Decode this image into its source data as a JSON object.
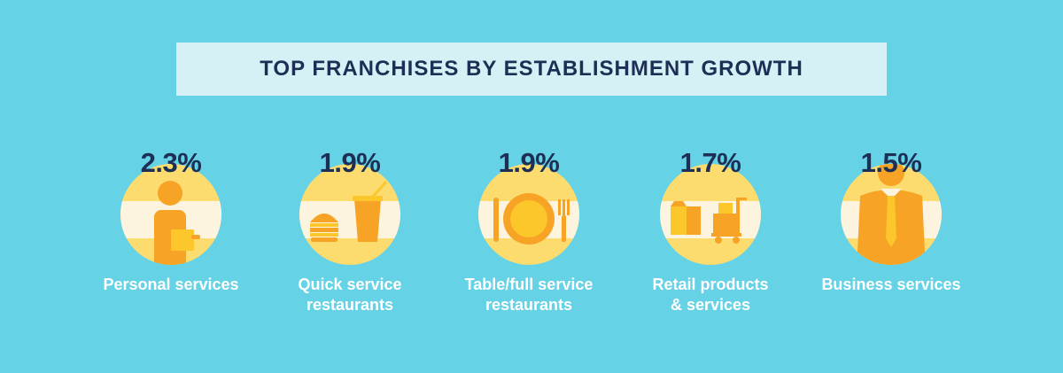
{
  "title": "TOP FRANCHISES BY ESTABLISHMENT GROWTH",
  "items": [
    {
      "value": "2.3%",
      "label_line1": "Personal services",
      "label_line2": "",
      "icon": "person-icon"
    },
    {
      "value": "1.9%",
      "label_line1": "Quick service",
      "label_line2": "restaurants",
      "icon": "burger-drink-icon"
    },
    {
      "value": "1.9%",
      "label_line1": "Table/full service",
      "label_line2": "restaurants",
      "icon": "plate-cutlery-icon"
    },
    {
      "value": "1.7%",
      "label_line1": "Retail products",
      "label_line2": "& services",
      "icon": "boxes-cart-icon"
    },
    {
      "value": "1.5%",
      "label_line1": "Business services",
      "label_line2": "",
      "icon": "businessman-icon"
    }
  ],
  "colors": {
    "background": "#65d2e6",
    "title_box": "#d6f1f6",
    "title_text": "#1d2f55",
    "circle_yellow": "#fcdc6f",
    "circle_cream": "#fdf4df",
    "orange": "#f7a326",
    "yellow": "#fcc72a"
  }
}
